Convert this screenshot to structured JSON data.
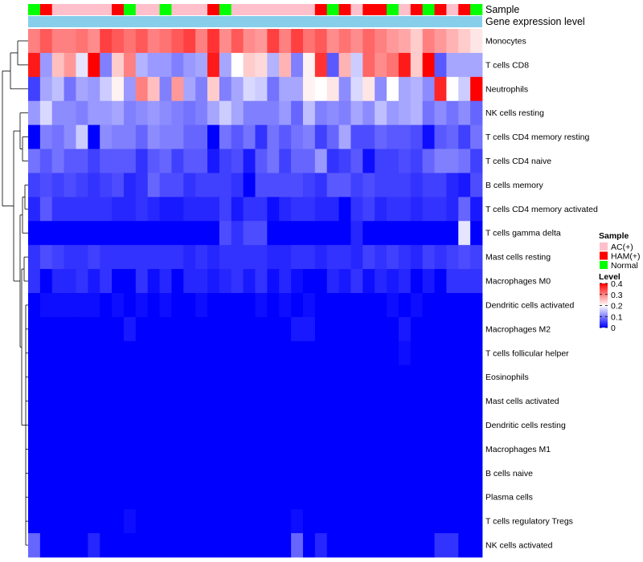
{
  "chart_data": {
    "type": "heatmap",
    "title": "",
    "annotation_labels": {
      "sample": "Sample",
      "expression": "Gene expression level"
    },
    "annotation_colors": {
      "AC(+)": "#FFC0CB",
      "HAM(+)": "#FF0000",
      "Normal": "#00FF00",
      "expression_bar": "#87CEEB"
    },
    "samples": [
      "Normal",
      "HAM(+)",
      "AC(+)",
      "AC(+)",
      "AC(+)",
      "AC(+)",
      "AC(+)",
      "HAM(+)",
      "Normal",
      "AC(+)",
      "AC(+)",
      "Normal",
      "AC(+)",
      "AC(+)",
      "AC(+)",
      "HAM(+)",
      "Normal",
      "AC(+)",
      "AC(+)",
      "AC(+)",
      "AC(+)",
      "AC(+)",
      "AC(+)",
      "AC(+)",
      "HAM(+)",
      "Normal",
      "HAM(+)",
      "AC(+)",
      "HAM(+)",
      "HAM(+)",
      "Normal",
      "AC(+)",
      "HAM(+)",
      "Normal",
      "HAM(+)",
      "AC(+)",
      "HAM(+)",
      "Normal"
    ],
    "rows": [
      "Monocytes",
      "T cells CD8",
      "Neutrophils",
      "NK cells resting",
      "T cells CD4 memory resting",
      "T cells CD4 naive",
      "B cells memory",
      "T cells CD4 memory activated",
      "T cells gamma delta",
      "Mast cells resting",
      "Macrophages M0",
      "Dendritic cells activated",
      "Macrophages M2",
      "T cells follicular helper",
      "Eosinophils",
      "Mast cells activated",
      "Dendritic cells resting",
      "Macrophages M1",
      "B cells naive",
      "Plasma cells",
      "T cells regulatory  Tregs",
      "NK cells activated"
    ],
    "values": [
      [
        0.3,
        0.33,
        0.3,
        0.3,
        0.31,
        0.29,
        0.35,
        0.33,
        0.31,
        0.33,
        0.3,
        0.31,
        0.33,
        0.35,
        0.3,
        0.36,
        0.29,
        0.33,
        0.29,
        0.28,
        0.35,
        0.3,
        0.35,
        0.31,
        0.33,
        0.29,
        0.31,
        0.29,
        0.32,
        0.3,
        0.28,
        0.27,
        0.24,
        0.3,
        0.28,
        0.26,
        0.24,
        0.22
      ],
      [
        0.38,
        0.12,
        0.25,
        0.28,
        0.18,
        0.4,
        0.1,
        0.24,
        0.3,
        0.14,
        0.12,
        0.12,
        0.1,
        0.12,
        0.13,
        0.38,
        0.13,
        0.2,
        0.24,
        0.23,
        0.14,
        0.26,
        0.1,
        0.21,
        0.36,
        0.07,
        0.26,
        0.16,
        0.32,
        0.29,
        0.31,
        0.38,
        0.24,
        0.4,
        0.07,
        0.13,
        0.13,
        0.13
      ],
      [
        0.05,
        0.13,
        0.15,
        0.09,
        0.13,
        0.12,
        0.16,
        0.21,
        0.12,
        0.3,
        0.25,
        0.1,
        0.28,
        0.13,
        0.1,
        0.24,
        0.1,
        0.13,
        0.17,
        0.16,
        0.09,
        0.13,
        0.13,
        0.21,
        0.2,
        0.22,
        0.11,
        0.17,
        0.22,
        0.11,
        0.2,
        0.13,
        0.14,
        0.11,
        0.37,
        0.2,
        0.16,
        0.4
      ],
      [
        0.12,
        0.17,
        0.11,
        0.11,
        0.1,
        0.12,
        0.12,
        0.13,
        0.1,
        0.11,
        0.12,
        0.11,
        0.1,
        0.09,
        0.1,
        0.13,
        0.16,
        0.13,
        0.1,
        0.1,
        0.1,
        0.12,
        0.08,
        0.15,
        0.1,
        0.11,
        0.1,
        0.13,
        0.11,
        0.15,
        0.12,
        0.13,
        0.14,
        0.09,
        0.11,
        0.09,
        0.11,
        0.08
      ],
      [
        0.0,
        0.1,
        0.09,
        0.11,
        0.16,
        0.0,
        0.11,
        0.1,
        0.1,
        0.08,
        0.11,
        0.1,
        0.1,
        0.08,
        0.08,
        0.0,
        0.09,
        0.07,
        0.09,
        0.04,
        0.09,
        0.07,
        0.09,
        0.1,
        0.05,
        0.08,
        0.13,
        0.06,
        0.06,
        0.08,
        0.07,
        0.07,
        0.06,
        0.01,
        0.07,
        0.08,
        0.05,
        0.09
      ],
      [
        0.09,
        0.07,
        0.09,
        0.07,
        0.07,
        0.05,
        0.07,
        0.07,
        0.07,
        0.04,
        0.07,
        0.08,
        0.05,
        0.07,
        0.07,
        0.02,
        0.05,
        0.06,
        0.02,
        0.07,
        0.09,
        0.05,
        0.08,
        0.08,
        0.12,
        0.04,
        0.05,
        0.07,
        0.01,
        0.05,
        0.05,
        0.06,
        0.05,
        0.08,
        0.1,
        0.1,
        0.09,
        0.05
      ],
      [
        0.05,
        0.06,
        0.05,
        0.06,
        0.05,
        0.04,
        0.05,
        0.06,
        0.03,
        0.04,
        0.08,
        0.06,
        0.06,
        0.04,
        0.05,
        0.05,
        0.05,
        0.04,
        0.0,
        0.06,
        0.06,
        0.06,
        0.06,
        0.05,
        0.04,
        0.07,
        0.07,
        0.05,
        0.06,
        0.05,
        0.05,
        0.05,
        0.04,
        0.05,
        0.05,
        0.03,
        0.02,
        0.06
      ],
      [
        0.03,
        0.07,
        0.04,
        0.04,
        0.04,
        0.04,
        0.04,
        0.03,
        0.03,
        0.04,
        0.03,
        0.02,
        0.02,
        0.03,
        0.03,
        0.03,
        0.05,
        0.02,
        0.04,
        0.04,
        0.01,
        0.03,
        0.04,
        0.04,
        0.03,
        0.03,
        0.0,
        0.04,
        0.05,
        0.03,
        0.04,
        0.04,
        0.03,
        0.04,
        0.04,
        0.03,
        0.08,
        0.02
      ],
      [
        0.0,
        0.0,
        0.0,
        0.0,
        0.0,
        0.0,
        0.0,
        0.0,
        0.0,
        0.0,
        0.0,
        0.0,
        0.0,
        0.0,
        0.0,
        0.0,
        0.06,
        0.04,
        0.06,
        0.06,
        0.0,
        0.0,
        0.0,
        0.0,
        0.0,
        0.0,
        0.0,
        0.03,
        0.0,
        0.0,
        0.0,
        0.0,
        0.0,
        0.0,
        0.0,
        0.0,
        0.18,
        0.0
      ],
      [
        0.04,
        0.06,
        0.05,
        0.04,
        0.04,
        0.05,
        0.04,
        0.04,
        0.04,
        0.04,
        0.04,
        0.04,
        0.04,
        0.03,
        0.04,
        0.03,
        0.04,
        0.04,
        0.04,
        0.04,
        0.03,
        0.03,
        0.04,
        0.04,
        0.03,
        0.04,
        0.04,
        0.03,
        0.05,
        0.04,
        0.05,
        0.04,
        0.03,
        0.05,
        0.04,
        0.05,
        0.06,
        0.05
      ],
      [
        0.04,
        0.0,
        0.03,
        0.03,
        0.04,
        0.02,
        0.04,
        0.0,
        0.0,
        0.04,
        0.01,
        0.03,
        0.0,
        0.03,
        0.03,
        0.02,
        0.03,
        0.04,
        0.02,
        0.04,
        0.01,
        0.03,
        0.01,
        0.0,
        0.0,
        0.03,
        0.02,
        0.04,
        0.01,
        0.03,
        0.02,
        0.03,
        0.0,
        0.02,
        0.0,
        0.04,
        0.04,
        0.04
      ],
      [
        0.0,
        0.01,
        0.01,
        0.01,
        0.01,
        0.01,
        0.0,
        0.01,
        0.0,
        0.01,
        0.0,
        0.01,
        0.0,
        0.0,
        0.01,
        0.0,
        0.0,
        0.0,
        0.0,
        0.01,
        0.0,
        0.01,
        0.0,
        0.01,
        0.0,
        0.0,
        0.0,
        0.0,
        0.0,
        0.0,
        0.01,
        0.0,
        0.01,
        0.0,
        0.0,
        0.0,
        0.0,
        0.0
      ],
      [
        0.0,
        0.0,
        0.0,
        0.0,
        0.0,
        0.0,
        0.0,
        0.0,
        0.02,
        0.0,
        0.0,
        0.0,
        0.0,
        0.0,
        0.0,
        0.0,
        0.0,
        0.0,
        0.0,
        0.0,
        0.0,
        0.0,
        0.02,
        0.02,
        0.0,
        0.0,
        0.0,
        0.0,
        0.0,
        0.0,
        0.0,
        0.02,
        0.0,
        0.0,
        0.0,
        0.0,
        0.0,
        0.0
      ],
      [
        0.0,
        0.0,
        0.0,
        0.0,
        0.0,
        0.0,
        0.0,
        0.0,
        0.0,
        0.0,
        0.0,
        0.0,
        0.0,
        0.0,
        0.0,
        0.0,
        0.0,
        0.0,
        0.0,
        0.0,
        0.0,
        0.0,
        0.0,
        0.0,
        0.0,
        0.0,
        0.0,
        0.0,
        0.0,
        0.0,
        0.0,
        0.01,
        0.0,
        0.0,
        0.0,
        0.0,
        0.0,
        0.0
      ],
      [
        0.0,
        0.0,
        0.0,
        0.0,
        0.0,
        0.0,
        0.0,
        0.0,
        0.0,
        0.0,
        0.0,
        0.0,
        0.0,
        0.0,
        0.0,
        0.0,
        0.0,
        0.0,
        0.0,
        0.0,
        0.0,
        0.0,
        0.0,
        0.0,
        0.0,
        0.0,
        0.0,
        0.0,
        0.0,
        0.0,
        0.0,
        0.0,
        0.0,
        0.0,
        0.0,
        0.0,
        0.0,
        0.0
      ],
      [
        0.0,
        0.0,
        0.0,
        0.0,
        0.0,
        0.0,
        0.0,
        0.0,
        0.0,
        0.0,
        0.0,
        0.0,
        0.0,
        0.0,
        0.0,
        0.0,
        0.0,
        0.0,
        0.0,
        0.0,
        0.0,
        0.0,
        0.0,
        0.0,
        0.0,
        0.0,
        0.0,
        0.0,
        0.0,
        0.0,
        0.0,
        0.0,
        0.0,
        0.0,
        0.0,
        0.0,
        0.0,
        0.0
      ],
      [
        0.0,
        0.0,
        0.0,
        0.0,
        0.0,
        0.0,
        0.0,
        0.0,
        0.0,
        0.0,
        0.0,
        0.0,
        0.0,
        0.0,
        0.0,
        0.0,
        0.0,
        0.0,
        0.0,
        0.0,
        0.0,
        0.0,
        0.0,
        0.0,
        0.0,
        0.0,
        0.0,
        0.0,
        0.0,
        0.0,
        0.0,
        0.0,
        0.0,
        0.0,
        0.0,
        0.0,
        0.0,
        0.0
      ],
      [
        0.0,
        0.0,
        0.0,
        0.0,
        0.0,
        0.0,
        0.0,
        0.0,
        0.0,
        0.0,
        0.0,
        0.0,
        0.0,
        0.0,
        0.0,
        0.0,
        0.0,
        0.0,
        0.0,
        0.0,
        0.0,
        0.0,
        0.0,
        0.0,
        0.0,
        0.0,
        0.0,
        0.0,
        0.0,
        0.0,
        0.0,
        0.0,
        0.0,
        0.0,
        0.0,
        0.0,
        0.0,
        0.0
      ],
      [
        0.0,
        0.0,
        0.0,
        0.0,
        0.0,
        0.0,
        0.0,
        0.0,
        0.0,
        0.0,
        0.0,
        0.0,
        0.0,
        0.0,
        0.0,
        0.0,
        0.0,
        0.0,
        0.0,
        0.0,
        0.0,
        0.0,
        0.0,
        0.0,
        0.0,
        0.0,
        0.0,
        0.0,
        0.0,
        0.0,
        0.0,
        0.0,
        0.0,
        0.0,
        0.0,
        0.0,
        0.0,
        0.0
      ],
      [
        0.0,
        0.0,
        0.0,
        0.0,
        0.0,
        0.0,
        0.0,
        0.0,
        0.0,
        0.0,
        0.0,
        0.0,
        0.0,
        0.0,
        0.0,
        0.0,
        0.0,
        0.0,
        0.0,
        0.0,
        0.0,
        0.0,
        0.0,
        0.0,
        0.0,
        0.0,
        0.0,
        0.0,
        0.0,
        0.0,
        0.0,
        0.0,
        0.0,
        0.0,
        0.0,
        0.0,
        0.0,
        0.0
      ],
      [
        0.0,
        0.0,
        0.0,
        0.0,
        0.0,
        0.0,
        0.0,
        0.0,
        0.01,
        0.0,
        0.0,
        0.0,
        0.0,
        0.0,
        0.0,
        0.0,
        0.0,
        0.0,
        0.0,
        0.0,
        0.0,
        0.0,
        0.01,
        0.0,
        0.0,
        0.0,
        0.0,
        0.0,
        0.0,
        0.0,
        0.0,
        0.0,
        0.0,
        0.0,
        0.0,
        0.0,
        0.0,
        0.0
      ],
      [
        0.08,
        0.0,
        0.0,
        0.0,
        0.0,
        0.03,
        0.0,
        0.0,
        0.0,
        0.0,
        0.0,
        0.0,
        0.0,
        0.0,
        0.0,
        0.0,
        0.0,
        0.0,
        0.0,
        0.0,
        0.0,
        0.0,
        0.08,
        0.0,
        0.03,
        0.0,
        0.0,
        0.0,
        0.0,
        0.0,
        0.0,
        0.0,
        0.0,
        0.0,
        0.04,
        0.04,
        0.0,
        0.0
      ]
    ],
    "colorscale": {
      "min": 0,
      "mid": 0.2,
      "max": 0.4,
      "low_color": "#0000FF",
      "mid_color": "#FFFFFF",
      "high_color": "#FF0000"
    },
    "legend_sample": {
      "title": "Sample",
      "items": [
        "AC(+)",
        "HAM(+)",
        "Normal"
      ]
    },
    "legend_level": {
      "title": "Level",
      "ticks": [
        "0.4",
        "0.3",
        "0.2",
        "0.1",
        "0"
      ]
    },
    "dendrogram": "rows-left"
  }
}
